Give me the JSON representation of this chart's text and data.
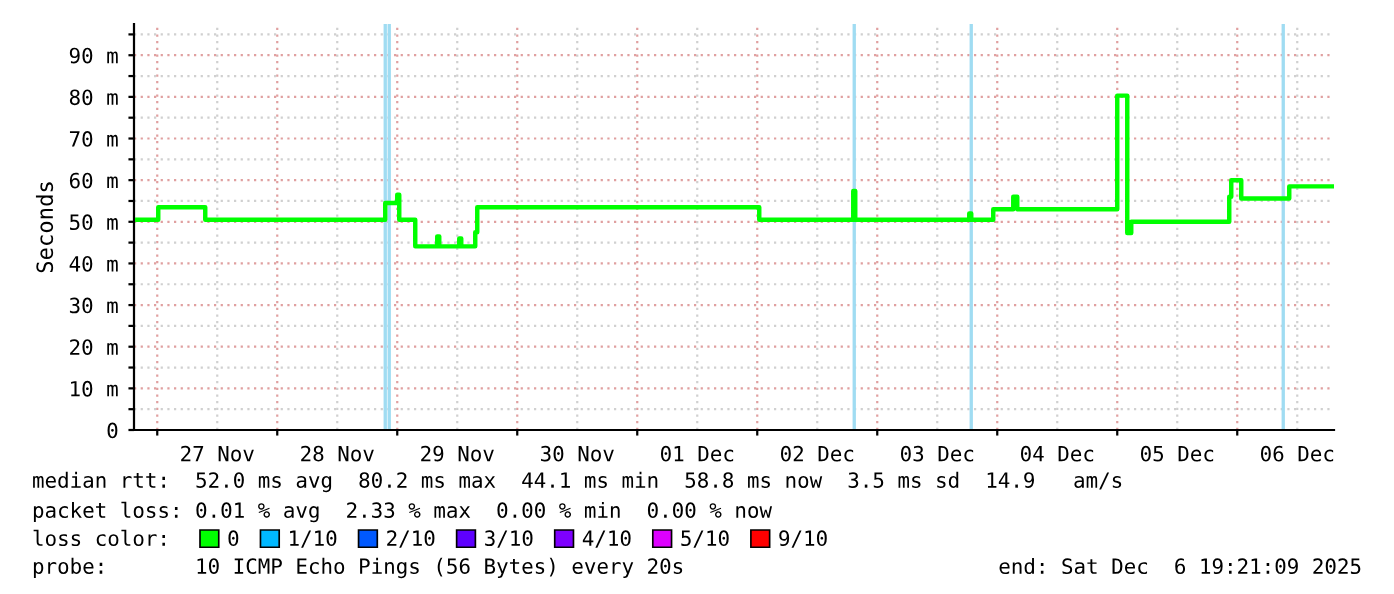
{
  "chart_data": {
    "type": "step",
    "ylabel": "Seconds",
    "legend_title": "loss color:",
    "legend": "bottom",
    "grid": true,
    "xlim": [
      "2025-11-26T19:21",
      "2025-12-06T19:21"
    ],
    "xticks": [
      {
        "value": "2025-11-27",
        "label": null
      },
      {
        "value": "2025-11-27T12:00",
        "label": "27 Nov"
      },
      {
        "value": "2025-11-28",
        "label": null
      },
      {
        "value": "2025-11-28T12:00",
        "label": "28 Nov"
      },
      {
        "value": "2025-11-29",
        "label": null
      },
      {
        "value": "2025-11-29T12:00",
        "label": "29 Nov"
      },
      {
        "value": "2025-11-30",
        "label": null
      },
      {
        "value": "2025-11-30T12:00",
        "label": "30 Nov"
      },
      {
        "value": "2025-12-01",
        "label": null
      },
      {
        "value": "2025-12-01T12:00",
        "label": "01 Dec"
      },
      {
        "value": "2025-12-02",
        "label": null
      },
      {
        "value": "2025-12-02T12:00",
        "label": "02 Dec"
      },
      {
        "value": "2025-12-03",
        "label": null
      },
      {
        "value": "2025-12-03T12:00",
        "label": "03 Dec"
      },
      {
        "value": "2025-12-04",
        "label": null
      },
      {
        "value": "2025-12-04T12:00",
        "label": "04 Dec"
      },
      {
        "value": "2025-12-05",
        "label": null
      },
      {
        "value": "2025-12-05T12:00",
        "label": "05 Dec"
      },
      {
        "value": "2025-12-06",
        "label": null
      },
      {
        "value": "2025-12-06T12:00",
        "label": "06 Dec"
      }
    ],
    "ylim": [
      0,
      97.5
    ],
    "yticks": [
      0,
      {
        "value": 5,
        "label": null
      },
      {
        "value": 10,
        "label": "10 m"
      },
      {
        "value": 15,
        "label": null
      },
      {
        "value": 20,
        "label": "20 m"
      },
      {
        "value": 25,
        "label": null
      },
      {
        "value": 30,
        "label": "30 m"
      },
      {
        "value": 35,
        "label": null
      },
      {
        "value": 40,
        "label": "40 m"
      },
      {
        "value": 45,
        "label": null
      },
      {
        "value": 50,
        "label": "50 m"
      },
      {
        "value": 55,
        "label": null
      },
      {
        "value": 60,
        "label": "60 m"
      },
      {
        "value": 65,
        "label": null
      },
      {
        "value": 70,
        "label": "70 m"
      },
      {
        "value": 75,
        "label": null
      },
      {
        "value": 80,
        "label": "80 m"
      },
      {
        "value": 85,
        "label": null
      },
      {
        "value": 90,
        "label": "90 m"
      },
      {
        "value": 95,
        "label": null
      }
    ],
    "series": [
      {
        "name": "0",
        "color": "#00ff00",
        "x": [
          "2025-11-26T20:00",
          "2025-11-27T00:12",
          "2025-11-27T09:36",
          "2025-11-28T21:36",
          "2025-11-29T00:00",
          "2025-11-29T00:24",
          "2025-11-29T03:36",
          "2025-11-29T08:00",
          "2025-11-29T08:24",
          "2025-11-29T12:24",
          "2025-11-29T12:48",
          "2025-11-29T15:36",
          "2025-11-29T16:00",
          "2025-12-02T00:24",
          "2025-12-02T19:12",
          "2025-12-02T19:36",
          "2025-12-03T18:24",
          "2025-12-03T18:48",
          "2025-12-03T23:12",
          "2025-12-04T03:12",
          "2025-12-04T04:00",
          "2025-12-05T00:00",
          "2025-12-05T02:00",
          "2025-12-05T02:48",
          "2025-12-05T22:24",
          "2025-12-05T22:48",
          "2025-12-06T00:48",
          "2025-12-06T10:24",
          "2025-12-06T19:12"
        ],
        "values": [
          50.5,
          53.5,
          50.5,
          54.5,
          56.5,
          50.5,
          44.1,
          46.5,
          44.1,
          46,
          44.1,
          47.5,
          53.5,
          50.5,
          57.4,
          50.5,
          52,
          50.5,
          53,
          56,
          53,
          80.3,
          47.3,
          50,
          56,
          60,
          55.6,
          58.5,
          58.5
        ]
      },
      {
        "name": "1/10",
        "color": "#00b8ff",
        "values": [
          null
        ]
      },
      {
        "name": "2/10",
        "color": "#0059ff",
        "values": [
          null
        ]
      },
      {
        "name": "3/10",
        "color": "#5e00ff",
        "values": [
          null
        ]
      },
      {
        "name": "4/10",
        "color": "#7e00ff",
        "values": [
          null
        ]
      },
      {
        "name": "5/10",
        "color": "#dd00ff",
        "values": [
          null
        ]
      },
      {
        "name": "9/10",
        "color": "#ff0000",
        "values": [
          null
        ]
      }
    ],
    "ref_lines": [
      {
        "axis": "x",
        "value": "2025-11-28T21:36",
        "color": "#a0dcf2"
      },
      {
        "axis": "x",
        "value": "2025-11-28T22:24",
        "color": "#a0dcf2"
      },
      {
        "axis": "x",
        "value": "2025-12-02T19:24",
        "color": "#a0dcf2"
      },
      {
        "axis": "x",
        "value": "2025-12-03T18:48",
        "color": "#a0dcf2"
      },
      {
        "axis": "x",
        "value": "2025-12-06T09:12",
        "color": "#a0dcf2"
      }
    ],
    "annotations": [
      "median rtt:  52.0 ms avg  80.2 ms max  44.1 ms min  58.8 ms now  3.5 ms sd  14.9   am/s",
      "packet loss: 0.01 % avg  2.33 % max  0.00 % min  0.00 % now",
      "probe:       10 ICMP Echo Pings (56 Bytes) every 20s",
      "end: Sat Dec  6 19:21:09 2025"
    ]
  }
}
